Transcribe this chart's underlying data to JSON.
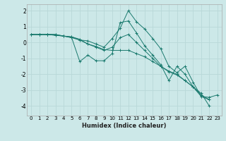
{
  "xlabel": "Humidex (Indice chaleur)",
  "ylabel": "",
  "bg_color": "#cce8e8",
  "grid_color": "#b8d8d8",
  "line_color": "#1a7a6e",
  "xlim": [
    -0.5,
    23.5
  ],
  "ylim": [
    -4.6,
    2.4
  ],
  "yticks": [
    -4,
    -3,
    -2,
    -1,
    0,
    1,
    2
  ],
  "xticks": [
    0,
    1,
    2,
    3,
    4,
    5,
    6,
    7,
    8,
    9,
    10,
    11,
    12,
    13,
    14,
    15,
    16,
    17,
    18,
    19,
    20,
    21,
    22,
    23
  ],
  "series": [
    [
      0.5,
      0.5,
      0.5,
      0.45,
      0.4,
      0.35,
      0.15,
      0.1,
      -0.1,
      -0.3,
      0.25,
      0.9,
      2.0,
      1.3,
      0.85,
      0.25,
      -0.4,
      -1.5,
      -1.9,
      -1.5,
      -2.5,
      -3.4,
      -3.45,
      -3.3
    ],
    [
      0.5,
      0.5,
      0.5,
      0.45,
      0.4,
      0.3,
      -1.2,
      -0.8,
      -1.15,
      -1.15,
      -0.7,
      1.25,
      1.35,
      0.6,
      -0.2,
      -0.8,
      -1.4,
      -2.4,
      -1.5,
      -2.0,
      -2.8,
      -3.4,
      -3.6,
      null
    ],
    [
      0.5,
      0.5,
      0.5,
      0.5,
      0.4,
      0.35,
      0.2,
      -0.1,
      -0.3,
      -0.5,
      -0.3,
      0.3,
      0.5,
      0.0,
      -0.5,
      -1.0,
      -1.5,
      -1.8,
      -2.0,
      -2.4,
      -2.8,
      -3.3,
      -3.6,
      null
    ],
    [
      0.5,
      0.5,
      0.5,
      0.5,
      0.4,
      0.3,
      0.15,
      -0.1,
      -0.25,
      -0.45,
      -0.5,
      -0.5,
      -0.5,
      -0.7,
      -0.9,
      -1.2,
      -1.5,
      -1.85,
      -2.05,
      -2.4,
      -2.8,
      -3.2,
      -4.0,
      null
    ]
  ]
}
